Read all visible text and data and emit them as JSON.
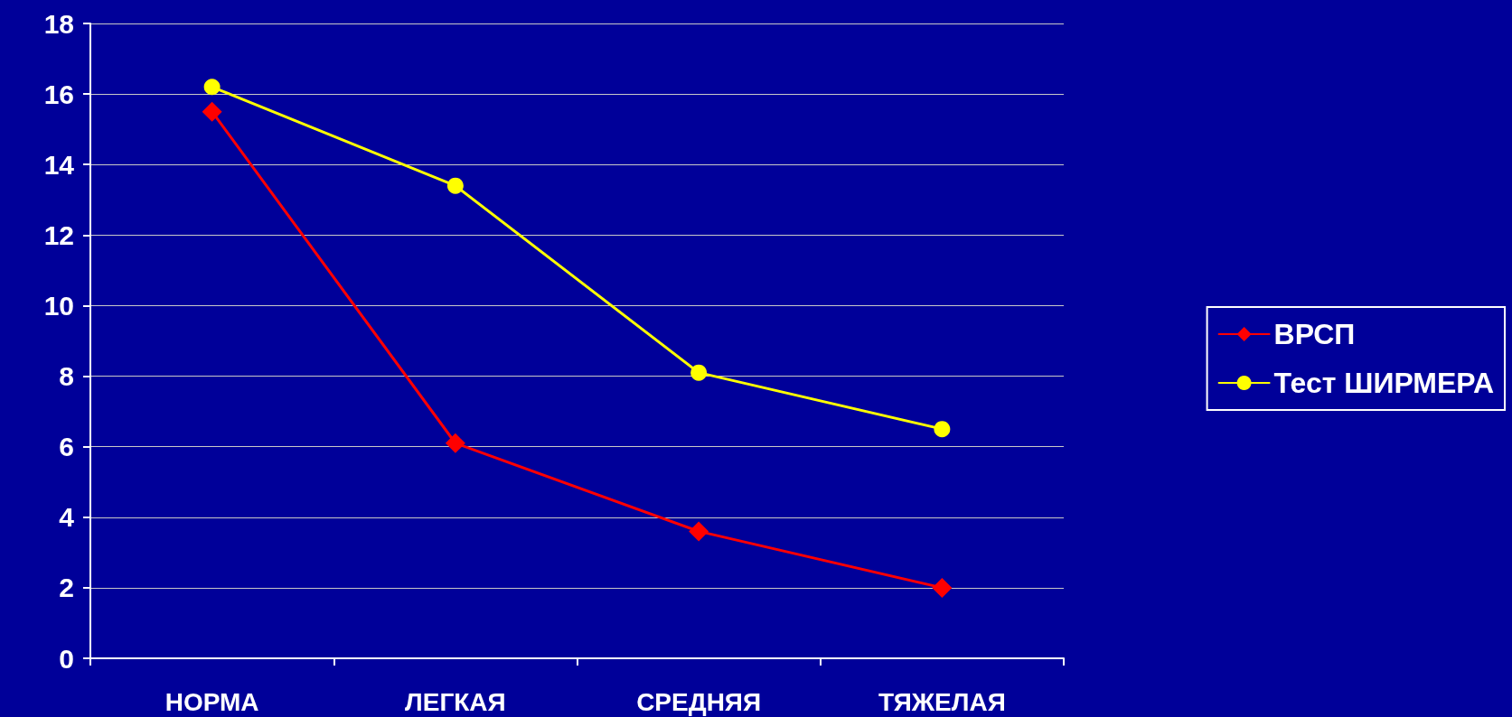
{
  "chart_data": {
    "type": "line",
    "categories": [
      "НОРМА",
      "ЛЕГКАЯ",
      "СРЕДНЯЯ",
      "ТЯЖЕЛАЯ"
    ],
    "series": [
      {
        "name": "ВРСП",
        "color": "#ff0000",
        "marker": "diamond",
        "values": [
          15.5,
          6.1,
          3.6,
          2.0
        ]
      },
      {
        "name": "Тест ШИРМЕРА",
        "color": "#ffff00",
        "marker": "circle",
        "values": [
          16.2,
          13.4,
          8.1,
          6.5
        ]
      }
    ],
    "ylim": [
      0,
      18
    ],
    "yticks": [
      0,
      2,
      4,
      6,
      8,
      10,
      12,
      14,
      16,
      18
    ],
    "grid": "y",
    "legend": "right",
    "line_style": "solid"
  }
}
